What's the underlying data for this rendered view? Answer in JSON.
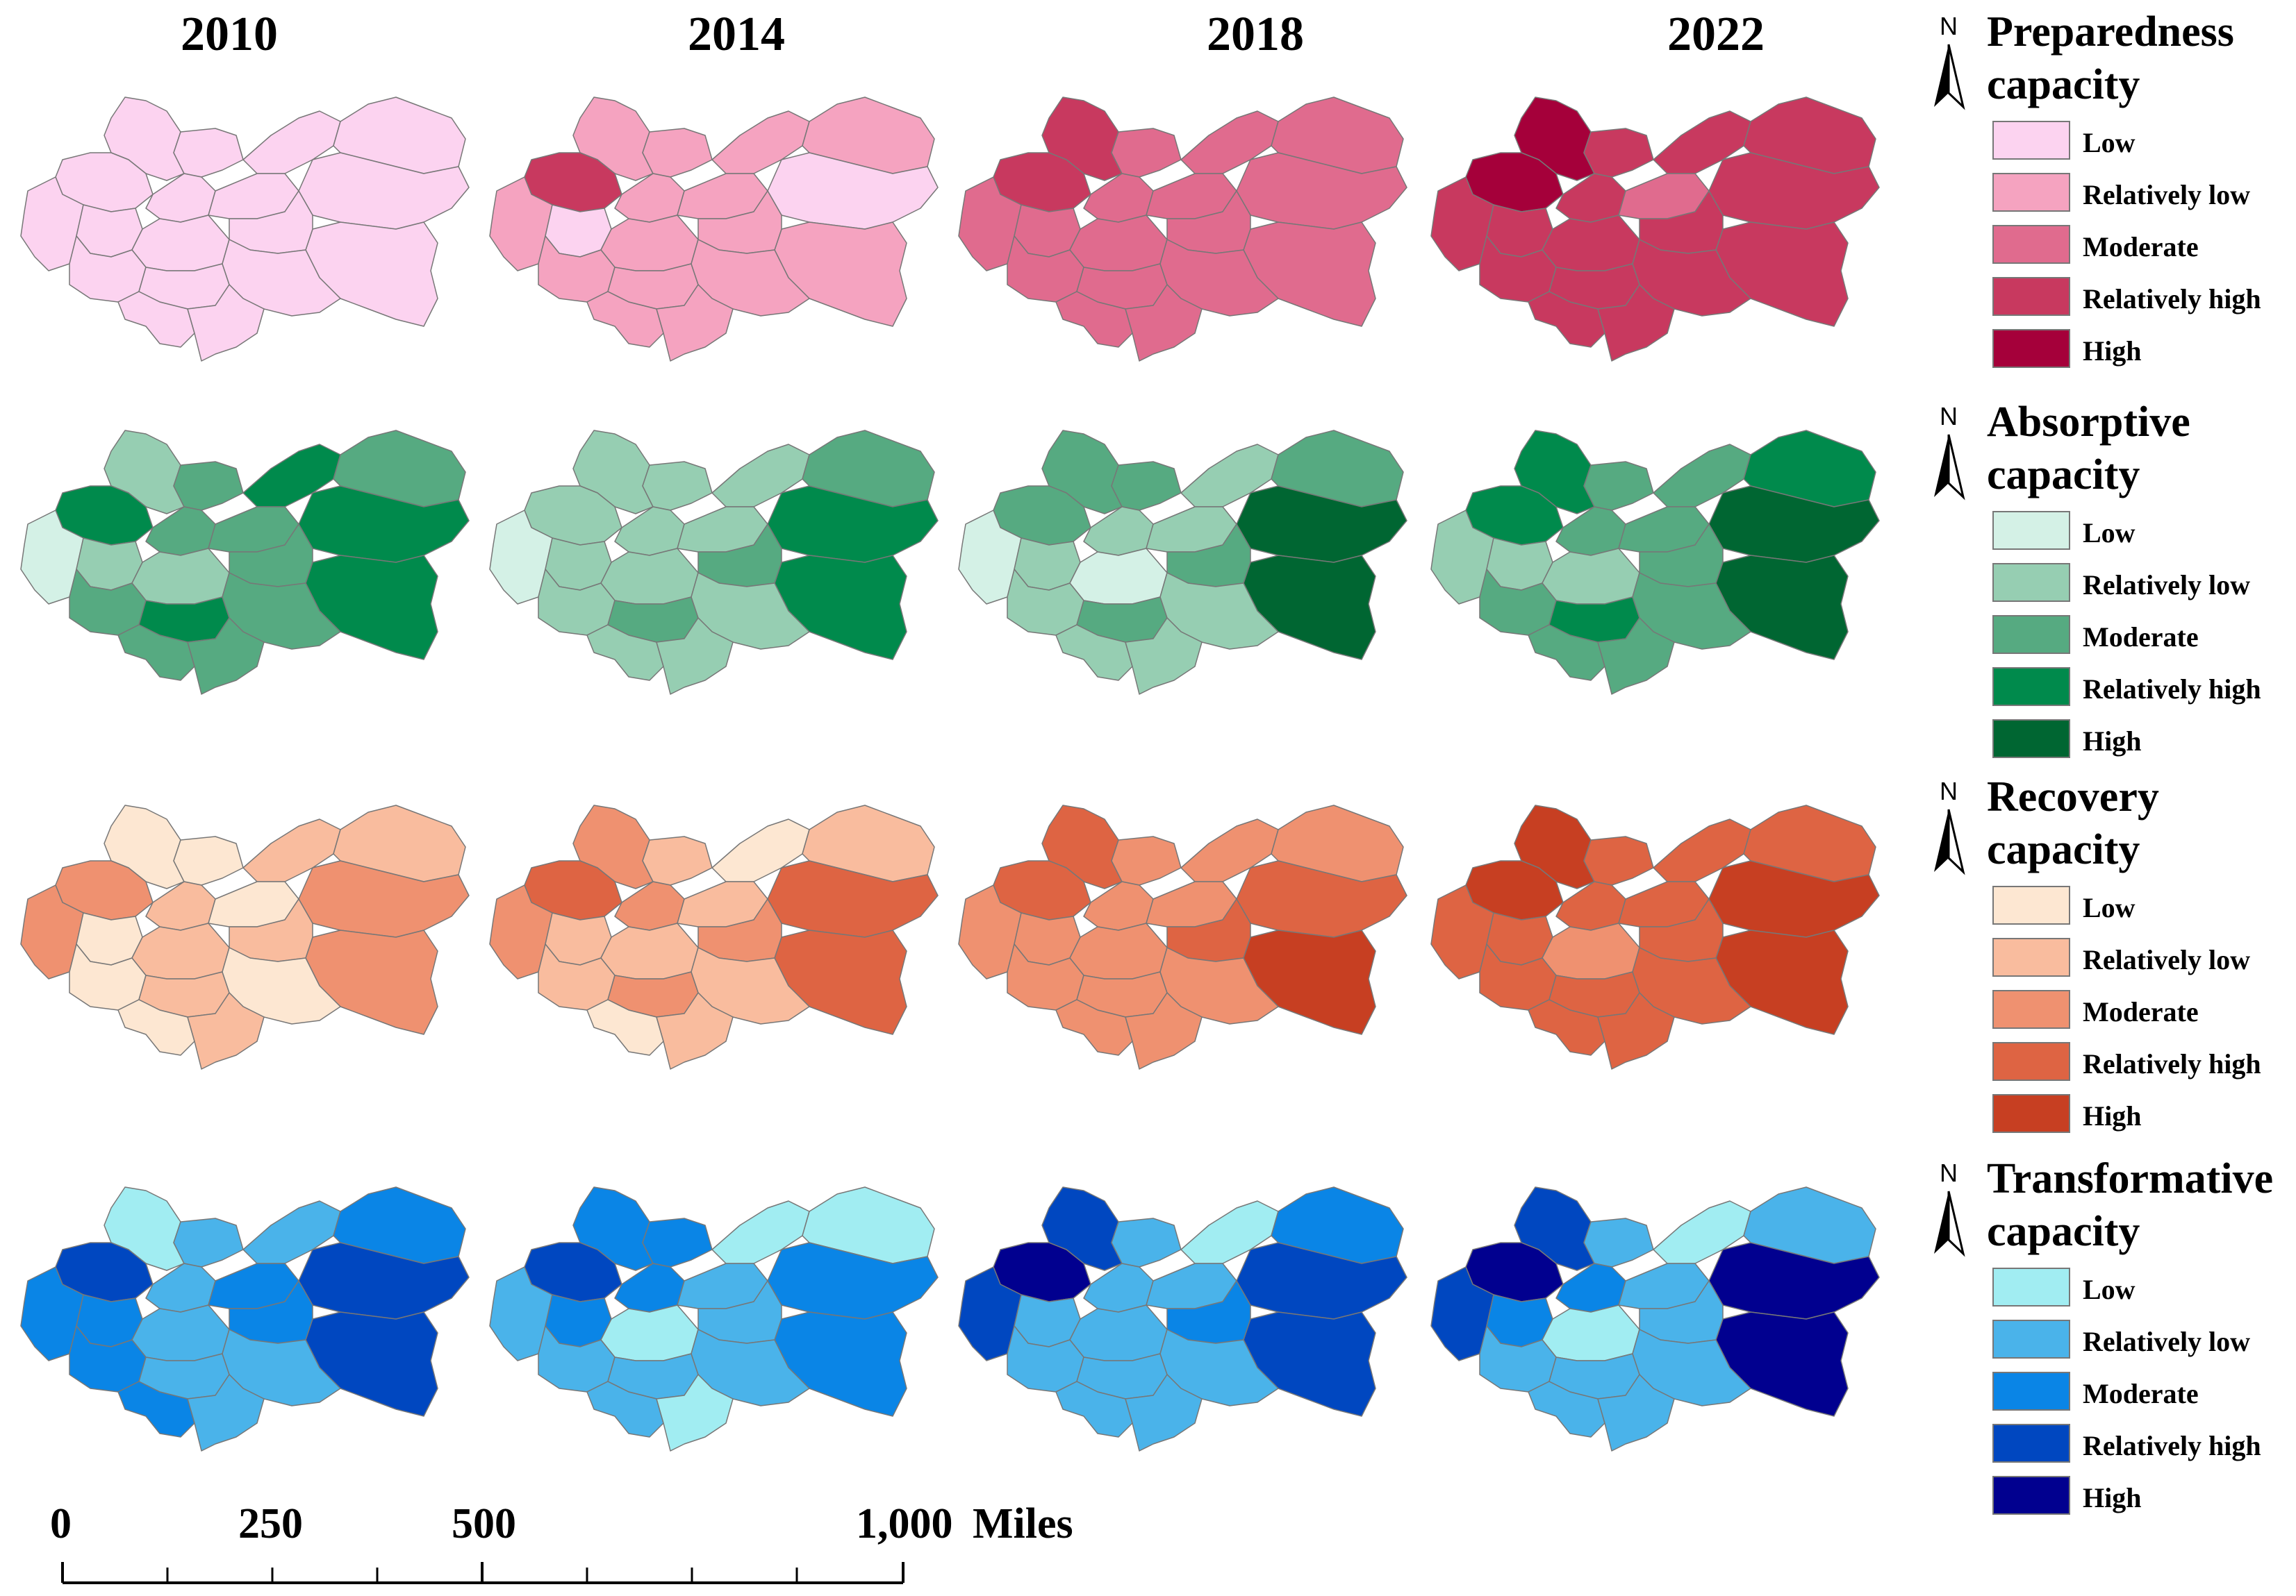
{
  "years": [
    "2010",
    "2014",
    "2018",
    "2022"
  ],
  "colors": {
    "Preparedness": [
      "#fcd3f0",
      "#f5a3c0",
      "#e06b8e",
      "#c8395f",
      "#a5003a"
    ],
    "Absorptive": [
      "#d4f1e6",
      "#96ceb2",
      "#56aa81",
      "#008a4c",
      "#006632"
    ],
    "Recovery": [
      "#fde7d2",
      "#f9bc9e",
      "#ef9170",
      "#de6443",
      "#c73f22"
    ],
    "Transformative": [
      "#a1edf2",
      "#4ab3ea",
      "#0a85e6",
      "#0047c0",
      "#01008f"
    ]
  },
  "legend_levels": [
    "Low",
    "Relatively low",
    "Moderate",
    "Relatively high",
    "High"
  ],
  "panels": [
    {
      "key": "Preparedness",
      "title1": "Preparedness",
      "title2": "capacity",
      "levels": [
        [
          0,
          0,
          0,
          0,
          0,
          0,
          0,
          0,
          0,
          0,
          0,
          0,
          0,
          0,
          0,
          0,
          0,
          0
        ],
        [
          1,
          1,
          1,
          1,
          3,
          1,
          0,
          1,
          1,
          0,
          1,
          1,
          1,
          1,
          1,
          1,
          1,
          1
        ],
        [
          3,
          2,
          2,
          2,
          3,
          2,
          2,
          2,
          2,
          2,
          2,
          2,
          2,
          2,
          2,
          2,
          2,
          2
        ],
        [
          4,
          3,
          3,
          3,
          4,
          3,
          3,
          3,
          2,
          3,
          3,
          3,
          3,
          3,
          3,
          3,
          3,
          3
        ]
      ]
    },
    {
      "key": "Absorptive",
      "title1": "Absorptive",
      "title2": "capacity",
      "levels": [
        [
          1,
          2,
          3,
          2,
          3,
          0,
          1,
          2,
          2,
          3,
          3,
          2,
          1,
          2,
          3,
          2,
          2,
          2
        ],
        [
          1,
          1,
          1,
          2,
          1,
          0,
          1,
          1,
          1,
          3,
          3,
          2,
          1,
          1,
          2,
          1,
          1,
          1
        ],
        [
          2,
          2,
          1,
          2,
          2,
          0,
          1,
          1,
          1,
          4,
          4,
          2,
          0,
          1,
          2,
          1,
          1,
          1
        ],
        [
          3,
          2,
          2,
          3,
          3,
          1,
          1,
          2,
          2,
          4,
          4,
          2,
          1,
          2,
          3,
          2,
          2,
          2
        ]
      ]
    },
    {
      "key": "Recovery",
      "title1": "Recovery",
      "title2": "capacity",
      "levels": [
        [
          0,
          0,
          1,
          1,
          2,
          2,
          0,
          1,
          0,
          2,
          2,
          1,
          1,
          0,
          1,
          0,
          0,
          1
        ],
        [
          2,
          1,
          0,
          1,
          3,
          2,
          1,
          2,
          1,
          3,
          3,
          2,
          1,
          1,
          2,
          1,
          0,
          1
        ],
        [
          3,
          2,
          2,
          2,
          3,
          2,
          2,
          2,
          2,
          3,
          4,
          3,
          2,
          2,
          2,
          2,
          2,
          2
        ],
        [
          4,
          3,
          3,
          3,
          4,
          3,
          3,
          3,
          3,
          4,
          4,
          3,
          2,
          3,
          3,
          3,
          3,
          3
        ]
      ]
    },
    {
      "key": "Transformative",
      "title1": "Transformative",
      "title2": "capacity",
      "levels": [
        [
          0,
          1,
          1,
          2,
          3,
          2,
          2,
          1,
          2,
          3,
          3,
          2,
          1,
          2,
          1,
          1,
          2,
          1
        ],
        [
          2,
          2,
          0,
          0,
          3,
          1,
          2,
          2,
          1,
          2,
          2,
          1,
          0,
          1,
          1,
          1,
          1,
          0
        ],
        [
          3,
          1,
          0,
          2,
          4,
          3,
          1,
          1,
          1,
          3,
          3,
          2,
          1,
          1,
          1,
          1,
          1,
          1
        ],
        [
          3,
          1,
          0,
          1,
          4,
          3,
          2,
          2,
          1,
          4,
          4,
          1,
          0,
          1,
          1,
          1,
          1,
          1
        ]
      ]
    }
  ],
  "scale": {
    "labels": [
      "0",
      "250",
      "500",
      "1,000"
    ],
    "unit": "Miles"
  },
  "north": "N"
}
